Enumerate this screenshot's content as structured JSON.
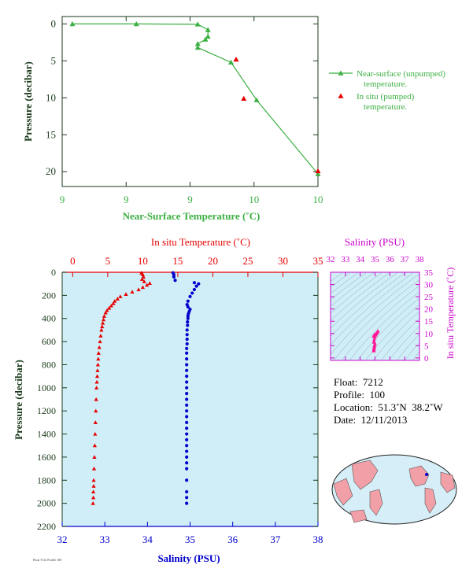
{
  "colors": {
    "green": "#3cb043",
    "red": "#e60000",
    "blue": "#0000cc",
    "magenta": "#cc00cc",
    "pink": "#ff1493",
    "panel_bg": "#d0eef8",
    "axis": "#1a3a1a"
  },
  "info": {
    "float": "Float:  7212",
    "profile": "Profile:  100",
    "location": "Location:  51.3˚N  38.2˚W",
    "date": "Date:  12/11/2013"
  },
  "chart_data": [
    {
      "type": "line",
      "id": "near_surface",
      "xlabel": "Near-Surface Temperature (˚C)",
      "ylabel": "Pressure (decibar)",
      "xlim": [
        9,
        10
      ],
      "ylim": [
        22,
        -1
      ],
      "x_ticks": [
        9,
        9.25,
        9.5,
        9.75,
        10
      ],
      "x_tick_labels": [
        "9",
        "9",
        "9",
        "10",
        "10"
      ],
      "y_ticks": [
        0,
        5,
        10,
        15,
        20
      ],
      "legend": {
        "placement": "right",
        "line_entry": [
          "Near-surface (unpumped)",
          "temperature."
        ],
        "marker_entry": [
          "In situ (pumped)",
          "temperature."
        ]
      },
      "series": [
        {
          "label": "near-surface-unpumped",
          "temperature": [
            9.04,
            9.29,
            9.53,
            9.57,
            9.57,
            9.56,
            9.53,
            9.53,
            9.66,
            9.76,
            10.0
          ],
          "pressure": [
            0.0,
            0.0,
            0.05,
            0.8,
            1.7,
            2.1,
            2.7,
            3.2,
            5.2,
            10.3,
            20.3
          ]
        },
        {
          "label": "in-situ-pumped",
          "temperature": [
            9.68,
            9.71,
            10.0
          ],
          "pressure": [
            4.8,
            10.1,
            19.9
          ]
        }
      ]
    },
    {
      "type": "scatter",
      "id": "profile",
      "top_xlabel": "In situ Temperature (˚C)",
      "bottom_xlabel": "Salinity (PSU)",
      "ylabel": "Pressure (decibar)",
      "temp_xlim": [
        -1.5,
        35
      ],
      "temp_ticks": [
        0,
        5,
        10,
        15,
        20,
        25,
        30,
        35
      ],
      "sal_xlim": [
        32,
        38
      ],
      "sal_ticks": [
        32,
        33,
        34,
        35,
        36,
        37,
        38
      ],
      "ylim": [
        2200,
        0
      ],
      "y_ticks": [
        0,
        200,
        400,
        600,
        800,
        1000,
        1200,
        1400,
        1600,
        1800,
        2000,
        2200
      ],
      "series": [
        {
          "label": "temperature",
          "temperature": [
            9.8,
            10.0,
            10.1,
            9.9,
            10.2,
            11.0,
            10.6,
            10.0,
            9.4,
            8.5,
            7.6,
            6.8,
            6.4,
            6.0,
            5.8,
            5.5,
            5.2,
            4.9,
            4.7,
            4.5,
            4.4,
            4.3,
            4.2,
            4.1,
            4.0,
            3.9,
            3.8,
            3.7,
            3.65,
            3.6,
            3.55,
            3.5,
            3.45,
            3.4,
            3.35,
            3.3,
            3.25,
            3.2,
            3.15,
            3.1,
            3.05,
            3.0,
            3.0,
            2.95,
            2.95,
            2.9
          ],
          "pressure": [
            5,
            20,
            40,
            60,
            80,
            95,
            110,
            130,
            150,
            170,
            190,
            210,
            230,
            250,
            270,
            290,
            310,
            330,
            350,
            380,
            410,
            440,
            470,
            500,
            550,
            600,
            650,
            700,
            750,
            800,
            850,
            900,
            950,
            1000,
            1100,
            1200,
            1300,
            1400,
            1500,
            1600,
            1700,
            1800,
            1850,
            1900,
            1950,
            2000
          ]
        },
        {
          "label": "salinity",
          "salinity": [
            34.6,
            34.62,
            34.62,
            34.65,
            35.1,
            35.2,
            35.15,
            35.1,
            35.05,
            35.0,
            34.95,
            34.93,
            34.95,
            35.0,
            34.98,
            34.96,
            34.95,
            34.95,
            34.94,
            34.94,
            34.93,
            34.93,
            34.93,
            34.93,
            34.92,
            34.92,
            34.92,
            34.92,
            34.92,
            34.92,
            34.92,
            34.92,
            34.92,
            34.92,
            34.92,
            34.92,
            34.92,
            34.92,
            34.92,
            34.92,
            34.92,
            34.92,
            34.92,
            34.92,
            34.92,
            34.92,
            34.92,
            34.92,
            34.92,
            34.92
          ],
          "pressure": [
            5,
            20,
            40,
            70,
            90,
            100,
            120,
            150,
            180,
            210,
            250,
            280,
            300,
            320,
            340,
            360,
            380,
            400,
            430,
            460,
            500,
            540,
            580,
            620,
            660,
            700,
            750,
            800,
            850,
            900,
            950,
            1000,
            1050,
            1100,
            1150,
            1200,
            1250,
            1300,
            1350,
            1400,
            1450,
            1500,
            1550,
            1600,
            1650,
            1700,
            1800,
            1900,
            1950,
            2000
          ]
        }
      ]
    },
    {
      "type": "scatter",
      "id": "ts_inset",
      "title": "Salinity (PSU)",
      "ylabel": "In situ Temperature (˚C)",
      "xlim": [
        32,
        38
      ],
      "x_ticks": [
        32,
        33,
        34,
        35,
        36,
        37,
        38
      ],
      "ylim": [
        -1,
        35
      ],
      "y_ticks": [
        0,
        5,
        10,
        15,
        20,
        25,
        30,
        35
      ],
      "series": [
        {
          "label": "ts-points",
          "salinity": [
            34.92,
            34.92,
            34.93,
            34.94,
            34.95,
            34.96,
            35.0,
            34.95,
            34.93,
            34.95,
            35.0,
            35.05,
            35.1,
            35.15,
            35.2,
            35.1,
            35.05,
            34.95,
            34.9
          ],
          "temperature": [
            2.9,
            3.3,
            3.7,
            4.2,
            4.7,
            5.2,
            5.8,
            6.4,
            6.8,
            7.6,
            8.5,
            9.4,
            10.0,
            10.6,
            11.0,
            10.2,
            9.9,
            9.5,
            8.8
          ]
        }
      ]
    }
  ]
}
